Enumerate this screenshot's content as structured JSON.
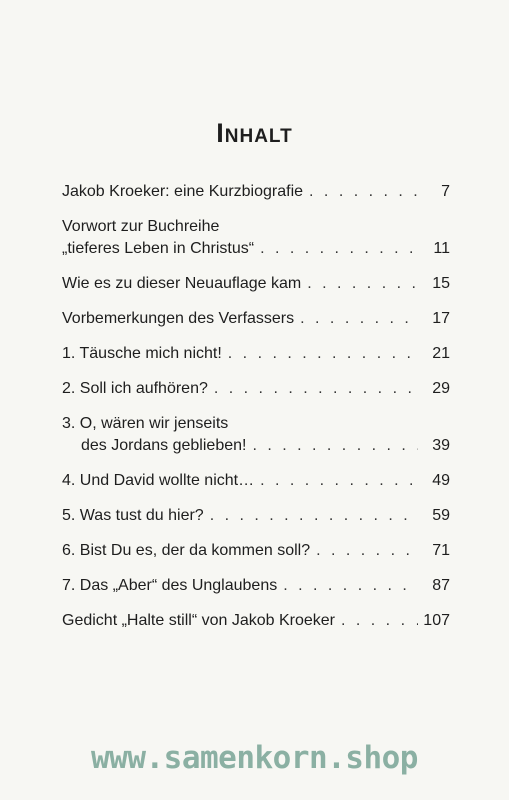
{
  "title": "Inhalt",
  "entries": [
    {
      "lines": [
        "Jakob Kroeker: eine Kurzbiografie"
      ],
      "page": "7"
    },
    {
      "lines": [
        "Vorwort zur Buchreihe",
        "„tieferes Leben in Christus“"
      ],
      "page": "11"
    },
    {
      "lines": [
        "Wie es zu dieser Neuauflage kam"
      ],
      "page": "15"
    },
    {
      "lines": [
        "Vorbemerkungen des Verfassers"
      ],
      "page": "17"
    },
    {
      "lines": [
        "1. Täusche mich nicht!"
      ],
      "page": "21"
    },
    {
      "lines": [
        "2. Soll ich aufhören?"
      ],
      "page": "29"
    },
    {
      "lines": [
        "3. O, wären wir jenseits",
        "des Jordans geblieben!"
      ],
      "page": "39"
    },
    {
      "lines": [
        "4. Und David wollte nicht…"
      ],
      "page": "49"
    },
    {
      "lines": [
        "5. Was tust du hier?"
      ],
      "page": "59"
    },
    {
      "lines": [
        "6. Bist Du es, der da kommen soll?"
      ],
      "page": "71"
    },
    {
      "lines": [
        "7. Das „Aber“ des Unglaubens"
      ],
      "page": "87"
    },
    {
      "lines": [
        "Gedicht „Halte still“ von Jakob Kroeker"
      ],
      "page": "107"
    }
  ],
  "footer": "www.samenkorn.shop"
}
